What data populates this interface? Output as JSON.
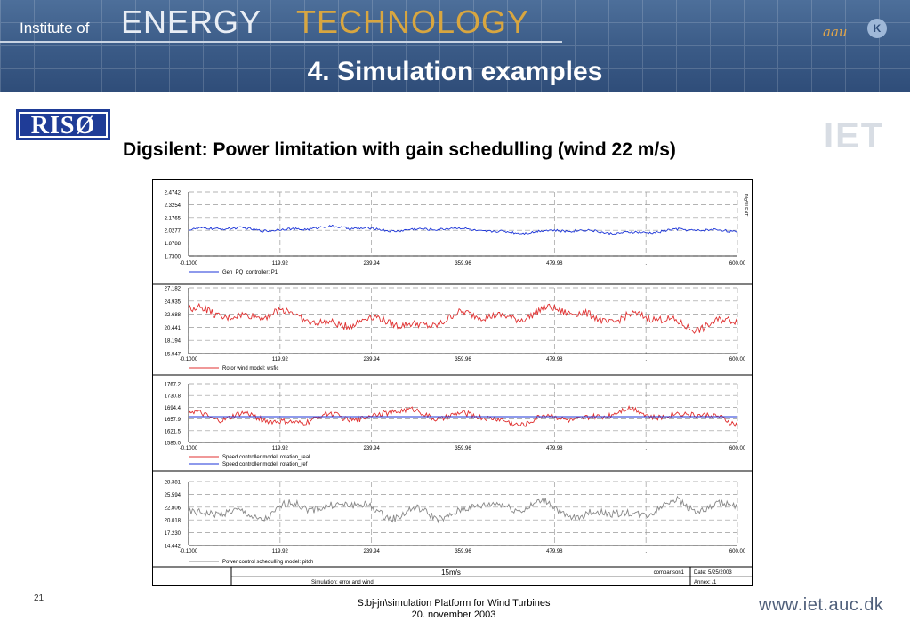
{
  "header": {
    "institute": "Institute of",
    "energy": "ENERGY",
    "technology": "TECHNOLOGY",
    "slide_title": "4. Simulation examples",
    "aau": "aau"
  },
  "logos": {
    "riso": "RISØ",
    "iet": "IET"
  },
  "subtitle": "Digsilent: Power limitation with gain schedulling (wind 22 m/s)",
  "chart_data": [
    {
      "type": "line",
      "corner_label": "DIgSILENT",
      "x_ticks": [
        "-0.1000",
        "119.92",
        "239.94",
        "359.96",
        "479.98",
        ".",
        "600.00"
      ],
      "y_ticks": [
        "2.4742",
        "2.3254",
        "2.1765",
        "2.0277",
        "1.8788",
        "1.7300"
      ],
      "ylim": [
        1.73,
        2.4742
      ],
      "xlim": [
        -0.1,
        600
      ],
      "series": [
        {
          "name": "Gen_PQ_controller: P1",
          "color": "#1c35d8",
          "mean": 2.03,
          "amp": 0.035
        }
      ]
    },
    {
      "type": "line",
      "x_ticks": [
        "-0.1000",
        "119.92",
        "239.94",
        "359.96",
        "479.98",
        ".",
        "600.00"
      ],
      "y_ticks": [
        "27.182",
        "24.935",
        "22.688",
        "20.441",
        "18.194",
        "15.947"
      ],
      "ylim": [
        15.947,
        27.182
      ],
      "xlim": [
        -0.1,
        600
      ],
      "series": [
        {
          "name": "Rotor wind model: wsfic",
          "color": "#e03030",
          "mean": 22.0,
          "amp": 1.6
        }
      ]
    },
    {
      "type": "line",
      "x_ticks": [
        "-0.1000",
        "119.92",
        "239.94",
        "359.96",
        "479.98",
        ".",
        "600.00"
      ],
      "y_ticks": [
        "1767.2",
        "1730.8",
        "1694.4",
        "1657.9",
        "1621.5",
        "1585.0"
      ],
      "ylim": [
        1585.0,
        1767.2
      ],
      "xlim": [
        -0.1,
        600
      ],
      "series": [
        {
          "name": "Speed controller model: rotation_real",
          "color": "#e03030",
          "mean": 1665,
          "amp": 22
        },
        {
          "name": "Speed controller model: rotation_ref",
          "color": "#1c35d8",
          "mean": 1665,
          "amp": 0
        }
      ]
    },
    {
      "type": "line",
      "x_ticks": [
        "-0.1000",
        "119.92",
        "239.94",
        "359.96",
        "479.98",
        ".",
        "600.00"
      ],
      "y_ticks": [
        "28.381",
        "25.594",
        "22.806",
        "20.018",
        "17.230",
        "14.442"
      ],
      "ylim": [
        14.442,
        28.381
      ],
      "xlim": [
        -0.1,
        600
      ],
      "series": [
        {
          "name": "Power control schedulling model: pitch",
          "color": "#888888",
          "mean": 22.2,
          "amp": 2.0
        }
      ]
    }
  ],
  "title_block": {
    "case": "15m/s",
    "description": "Simulation: error and wind",
    "project": "comparison1",
    "date": "Date:  5/25/2003",
    "annex": "Annex:   /1"
  },
  "footer": {
    "page_number": "21",
    "line1": "S:bj-jn\\simulation Platform for Wind Turbines",
    "line2": "20. november 2003",
    "url": "www.iet.auc.dk"
  },
  "colors": {
    "header_blue": "#3a5a86",
    "technology_gold": "#d8a640",
    "riso_blue": "#1f3c97"
  }
}
